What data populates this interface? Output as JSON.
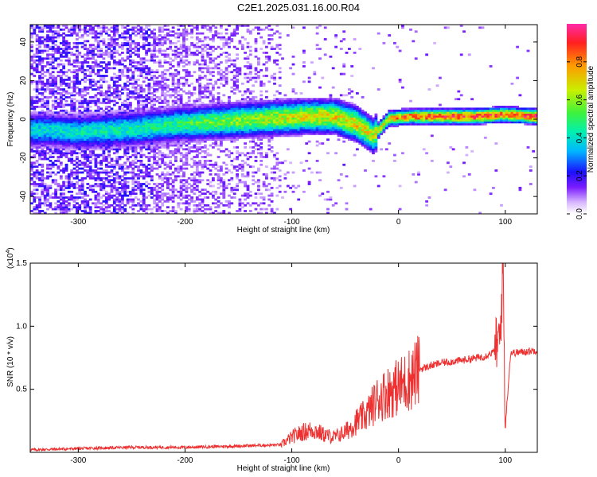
{
  "title": "C2E1.2025.031.16.00.R04",
  "chart_data": [
    {
      "type": "heatmap",
      "xlabel": "Height of straight line (km)",
      "ylabel": "Frequency (Hz)",
      "xlim": [
        -345,
        130
      ],
      "ylim": [
        -49,
        49
      ],
      "x_ticks": [
        "-300",
        "-200",
        "-100",
        "0",
        "100"
      ],
      "y_ticks": [
        "-40",
        "-20",
        "0",
        "20",
        "40"
      ],
      "colorbar": {
        "label": "Normalized spectral amplitude",
        "range": [
          0,
          1
        ],
        "ticks": [
          "0.0",
          "0.2",
          "0.4",
          "0.6",
          "0.8"
        ],
        "colors": [
          "#ffffff",
          "#d8b8ff",
          "#7a1cff",
          "#1b10ff",
          "#00b7ff",
          "#00f0b0",
          "#3df23d",
          "#c8f000",
          "#ff9a00",
          "#ff2020",
          "#ff2aa8"
        ]
      },
      "ridge": [
        {
          "x": -330,
          "f": -6,
          "a": 0.42
        },
        {
          "x": -300,
          "f": -7,
          "a": 0.45
        },
        {
          "x": -270,
          "f": -6,
          "a": 0.47
        },
        {
          "x": -240,
          "f": -5,
          "a": 0.48
        },
        {
          "x": -210,
          "f": -3,
          "a": 0.52
        },
        {
          "x": -180,
          "f": -2,
          "a": 0.58
        },
        {
          "x": -150,
          "f": -1,
          "a": 0.63
        },
        {
          "x": -120,
          "f": 0,
          "a": 0.68
        },
        {
          "x": -90,
          "f": 1,
          "a": 0.72
        },
        {
          "x": -60,
          "f": 1,
          "a": 0.74
        },
        {
          "x": -40,
          "f": -3,
          "a": 0.76
        },
        {
          "x": -25,
          "f": -9,
          "a": 0.7
        },
        {
          "x": -10,
          "f": 0,
          "a": 0.82
        },
        {
          "x": 10,
          "f": 1,
          "a": 0.9
        },
        {
          "x": 40,
          "f": 1,
          "a": 0.96
        },
        {
          "x": 70,
          "f": 1,
          "a": 0.97
        },
        {
          "x": 97,
          "f": 2,
          "a": 0.9
        },
        {
          "x": 130,
          "f": 1,
          "a": 0.98
        }
      ]
    },
    {
      "type": "line",
      "xlabel": "Height of straight line (km)",
      "ylabel": "SNR (10 * v/v)",
      "y_multiplier": "(x10",
      "y_multiplier_exp": "4",
      "xlim": [
        -345,
        130
      ],
      "ylim": [
        0,
        1.5
      ],
      "x_ticks": [
        "-300",
        "-200",
        "-100",
        "0",
        "100"
      ],
      "y_ticks": [
        "0.5",
        "1.0",
        "1.5"
      ],
      "series_color": "#ee3030",
      "x": [
        -345,
        -300,
        -250,
        -200,
        -150,
        -110,
        -100,
        -90,
        -80,
        -70,
        -60,
        -50,
        -40,
        -30,
        -20,
        -10,
        0,
        10,
        20,
        40,
        60,
        80,
        90,
        95,
        98,
        100,
        105,
        110,
        130
      ],
      "y": [
        0.02,
        0.03,
        0.04,
        0.04,
        0.05,
        0.06,
        0.12,
        0.16,
        0.18,
        0.14,
        0.12,
        0.16,
        0.24,
        0.3,
        0.42,
        0.48,
        0.52,
        0.58,
        0.66,
        0.71,
        0.73,
        0.76,
        0.8,
        0.9,
        1.5,
        0.2,
        0.79,
        0.79,
        0.81
      ]
    }
  ]
}
